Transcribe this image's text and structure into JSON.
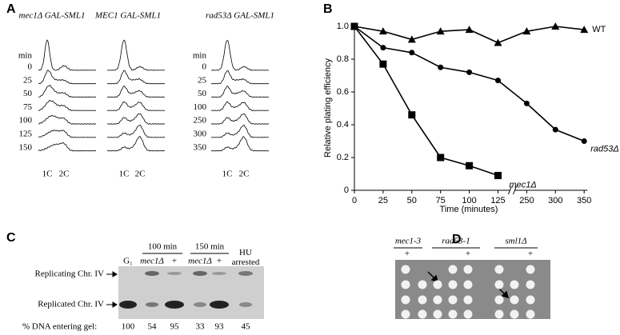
{
  "panel_a": {
    "letter": "A",
    "columns": [
      {
        "title": "mec1Δ GAL-SML1",
        "unit": "min",
        "times": [
          0,
          25,
          50,
          75,
          100,
          125,
          150
        ],
        "peaks": [
          "1C",
          "2C"
        ]
      },
      {
        "title": "MEC1 GAL-SML1",
        "peaks": [
          "1C",
          "2C"
        ]
      },
      {
        "title": "rad53Δ GAL-SML1",
        "unit": "min",
        "times": [
          0,
          25,
          50,
          100,
          250,
          300,
          350
        ],
        "peaks": [
          "1C",
          "2C"
        ]
      }
    ]
  },
  "chart_data": {
    "type": "line",
    "panel_label": "B",
    "x_label": "Time (minutes)",
    "y_label": "Relative plating efficiency",
    "categories": [
      "0",
      "25",
      "50",
      "75",
      "100",
      "125",
      "250",
      "300",
      "350"
    ],
    "ylim": [
      0,
      1
    ],
    "yticks": [
      0,
      0.2,
      0.4,
      0.6,
      0.8,
      {
        "value": 1,
        "label": "1.0"
      }
    ],
    "broken_axis": true,
    "series": [
      {
        "name": "WT",
        "color": "#000000",
        "marker": "triangle",
        "values": [
          1.0,
          0.97,
          0.92,
          0.97,
          0.98,
          0.9,
          0.97,
          1.0,
          0.98
        ]
      },
      {
        "name": "rad53Δ",
        "color": "#000000",
        "marker": "circle",
        "values": [
          1.0,
          0.87,
          0.84,
          0.75,
          0.72,
          0.67,
          0.53,
          0.37,
          0.3
        ]
      },
      {
        "name": "mec1Δ",
        "color": "#000000",
        "marker": "square",
        "values": [
          1.0,
          0.77,
          0.46,
          0.2,
          0.15,
          0.09,
          null,
          null,
          null
        ]
      }
    ]
  },
  "panel_c": {
    "letter": "C",
    "groups": [
      "100 min",
      "150 min"
    ],
    "lanes": [
      "G₁",
      "mec1Δ",
      "+",
      "mec1Δ",
      "+",
      "HU arrested"
    ],
    "bands": [
      "Replicating Chr. IV",
      "Replicated Chr. IV"
    ],
    "footer_label": "% DNA entering gel:",
    "percent": [
      100,
      54,
      95,
      33,
      93,
      45
    ]
  },
  "panel_d": {
    "letter": "D",
    "strains": [
      "mec1-3",
      "rad53-1",
      "sml1Δ"
    ],
    "controls": [
      "+",
      "+",
      "+"
    ]
  }
}
